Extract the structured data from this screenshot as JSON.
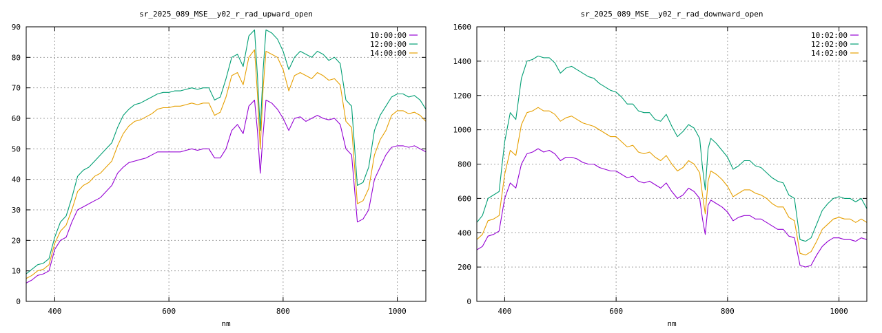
{
  "chart_data": [
    {
      "type": "line",
      "title": "sr_2025_089_MSE__y02_r_rad_upward_open",
      "xlabel": "nm",
      "ylabel": "",
      "xlim": [
        350,
        1050
      ],
      "ylim": [
        0,
        90
      ],
      "xticks": [
        400,
        600,
        800,
        1000
      ],
      "yticks": [
        0,
        10,
        20,
        30,
        40,
        50,
        60,
        70,
        80,
        90
      ],
      "grid": true,
      "legend_position": "top-right",
      "x": [
        350,
        360,
        370,
        380,
        390,
        400,
        410,
        420,
        430,
        440,
        450,
        460,
        470,
        480,
        490,
        500,
        510,
        520,
        530,
        540,
        550,
        560,
        570,
        580,
        590,
        600,
        610,
        620,
        630,
        640,
        650,
        660,
        670,
        680,
        690,
        700,
        710,
        720,
        730,
        740,
        750,
        755,
        760,
        765,
        770,
        780,
        790,
        800,
        810,
        820,
        830,
        840,
        850,
        860,
        870,
        880,
        890,
        900,
        910,
        920,
        930,
        940,
        950,
        960,
        970,
        980,
        990,
        1000,
        1010,
        1020,
        1030,
        1040,
        1050
      ],
      "series": [
        {
          "name": "10:00:00",
          "color": "#9400d3",
          "values": [
            6,
            7,
            8.5,
            9,
            10,
            17,
            20,
            21,
            26,
            30,
            31,
            32,
            33,
            34,
            36,
            38,
            42,
            44,
            45.5,
            46,
            46.5,
            47,
            48,
            49,
            49,
            49,
            49,
            49,
            49.5,
            50,
            49.5,
            50,
            50,
            47,
            47,
            50,
            56,
            58,
            55,
            64,
            66,
            56,
            42,
            55,
            66,
            65,
            63,
            60,
            56,
            60,
            60.5,
            59,
            60,
            61,
            60,
            59.5,
            60,
            58,
            50,
            48,
            26,
            27,
            30,
            40,
            44,
            48,
            50.5,
            51,
            51,
            50.5,
            51,
            50,
            49
          ]
        },
        {
          "name": "12:00:00",
          "color": "#009e73",
          "values": [
            9,
            10.5,
            12,
            12.5,
            14,
            21,
            26,
            28,
            34,
            41,
            43,
            44,
            46,
            48,
            50,
            52,
            57,
            61,
            63,
            64.5,
            65,
            66,
            67,
            68,
            68.5,
            68.5,
            69,
            69,
            69.5,
            70,
            69.5,
            70,
            70,
            66,
            67,
            73,
            80,
            81,
            77,
            87,
            89,
            74,
            56,
            76,
            89,
            88,
            86,
            82,
            76,
            80,
            82,
            81,
            80,
            82,
            81,
            79,
            80,
            78,
            66,
            64,
            38,
            39,
            44,
            56,
            61,
            64,
            67,
            68,
            68,
            67,
            67.5,
            66,
            63
          ]
        },
        {
          "name": "14:00:00",
          "color": "#e69f00",
          "values": [
            7.5,
            8.5,
            10,
            10.5,
            12,
            19,
            23,
            25,
            30,
            36,
            38,
            39,
            41,
            42,
            44,
            46,
            51,
            55,
            57.5,
            59,
            59.5,
            60.5,
            61.5,
            63,
            63.5,
            63.5,
            64,
            64,
            64.5,
            65,
            64.5,
            65,
            65,
            61,
            62,
            67,
            74,
            75,
            71,
            80,
            82.5,
            68,
            50,
            70,
            82,
            81,
            80,
            76,
            69,
            74,
            75,
            74,
            73,
            75,
            74,
            72.5,
            73,
            71,
            59,
            57,
            32,
            33,
            37,
            48,
            53,
            56,
            61,
            62.5,
            62.5,
            61.5,
            62,
            61,
            59
          ]
        }
      ]
    },
    {
      "type": "line",
      "title": "sr_2025_089_MSE__y02_r_rad_downward_open",
      "xlabel": "nm",
      "ylabel": "",
      "xlim": [
        350,
        1050
      ],
      "ylim": [
        0,
        1600
      ],
      "xticks": [
        400,
        600,
        800,
        1000
      ],
      "yticks": [
        0,
        200,
        400,
        600,
        800,
        1000,
        1200,
        1400,
        1600
      ],
      "grid": true,
      "legend_position": "top-right",
      "x": [
        350,
        360,
        370,
        380,
        390,
        400,
        410,
        420,
        430,
        440,
        450,
        460,
        470,
        480,
        490,
        500,
        510,
        520,
        530,
        540,
        550,
        560,
        570,
        580,
        590,
        600,
        610,
        620,
        630,
        640,
        650,
        660,
        670,
        680,
        690,
        700,
        710,
        720,
        730,
        740,
        750,
        755,
        760,
        765,
        770,
        780,
        790,
        800,
        810,
        820,
        830,
        840,
        850,
        860,
        870,
        880,
        890,
        900,
        910,
        920,
        930,
        940,
        950,
        960,
        970,
        980,
        990,
        1000,
        1010,
        1020,
        1030,
        1040,
        1050
      ],
      "series": [
        {
          "name": "10:02:00",
          "color": "#9400d3",
          "values": [
            300,
            320,
            380,
            390,
            410,
            600,
            690,
            660,
            800,
            860,
            870,
            890,
            870,
            880,
            860,
            820,
            840,
            840,
            830,
            810,
            800,
            800,
            780,
            770,
            760,
            760,
            740,
            720,
            730,
            700,
            690,
            700,
            680,
            660,
            690,
            640,
            600,
            620,
            660,
            640,
            600,
            480,
            390,
            560,
            590,
            570,
            550,
            520,
            470,
            490,
            500,
            500,
            480,
            480,
            460,
            440,
            420,
            420,
            380,
            370,
            210,
            200,
            210,
            270,
            320,
            350,
            370,
            370,
            360,
            360,
            350,
            370,
            360
          ]
        },
        {
          "name": "12:02:00",
          "color": "#009e73",
          "values": [
            460,
            500,
            600,
            620,
            640,
            930,
            1100,
            1060,
            1300,
            1400,
            1410,
            1430,
            1420,
            1420,
            1390,
            1330,
            1360,
            1370,
            1350,
            1330,
            1310,
            1300,
            1270,
            1250,
            1230,
            1220,
            1190,
            1150,
            1150,
            1110,
            1100,
            1100,
            1060,
            1050,
            1090,
            1020,
            960,
            990,
            1030,
            1010,
            950,
            780,
            650,
            890,
            950,
            920,
            880,
            840,
            770,
            790,
            820,
            820,
            790,
            780,
            750,
            720,
            700,
            690,
            620,
            600,
            360,
            350,
            370,
            450,
            530,
            570,
            600,
            610,
            600,
            600,
            580,
            600,
            540
          ]
        },
        {
          "name": "14:02:00",
          "color": "#e69f00",
          "values": [
            360,
            390,
            470,
            480,
            500,
            740,
            880,
            850,
            1030,
            1100,
            1110,
            1130,
            1110,
            1110,
            1090,
            1050,
            1070,
            1080,
            1060,
            1040,
            1030,
            1020,
            1000,
            980,
            960,
            960,
            930,
            900,
            910,
            870,
            860,
            870,
            840,
            820,
            850,
            800,
            760,
            780,
            820,
            800,
            750,
            620,
            510,
            700,
            760,
            740,
            710,
            670,
            610,
            630,
            650,
            650,
            630,
            620,
            600,
            570,
            550,
            550,
            490,
            470,
            280,
            270,
            290,
            350,
            420,
            450,
            480,
            490,
            480,
            480,
            460,
            480,
            460
          ]
        }
      ]
    }
  ]
}
